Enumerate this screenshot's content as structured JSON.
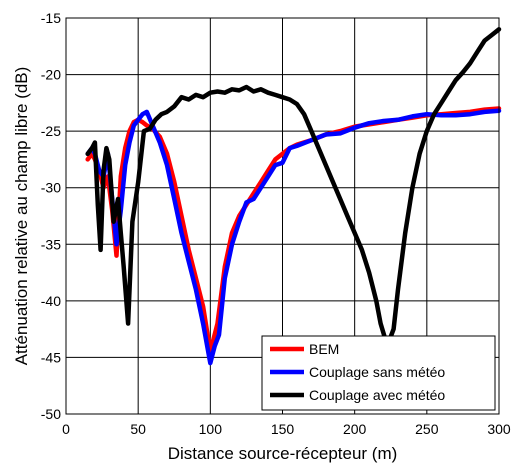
{
  "chart_data": {
    "type": "line",
    "title": "",
    "xlabel": "Distance source-récepteur (m)",
    "ylabel": "Atténuation relative au champ libre (dB)",
    "xlim": [
      0,
      300
    ],
    "ylim": [
      -50,
      -15
    ],
    "xticks": [
      0,
      50,
      100,
      150,
      200,
      250,
      300
    ],
    "yticks": [
      -50,
      -45,
      -40,
      -35,
      -30,
      -25,
      -20,
      -15
    ],
    "xtick_labels": [
      "0",
      "50",
      "100",
      "150",
      "200",
      "250",
      "300"
    ],
    "ytick_labels": [
      "-50",
      "-45",
      "-40",
      "-35",
      "-30",
      "-25",
      "-20",
      "-15"
    ],
    "grid": true,
    "legend_position": "bottom-right",
    "series": [
      {
        "name": "BEM",
        "color": "#ff0000",
        "x": [
          15,
          18,
          20,
          23,
          26,
          29,
          32,
          35,
          38,
          41,
          44,
          47,
          50,
          53,
          56,
          60,
          65,
          70,
          75,
          80,
          85,
          90,
          95,
          100,
          105,
          110,
          115,
          120,
          125,
          130,
          135,
          140,
          145,
          150,
          155,
          160,
          170,
          180,
          190,
          200,
          210,
          220,
          230,
          240,
          250,
          260,
          270,
          280,
          290,
          300
        ],
        "y": [
          -27.5,
          -27,
          -27.5,
          -28.5,
          -30,
          -29,
          -32,
          -36,
          -29,
          -26.5,
          -25,
          -24.2,
          -24,
          -24.2,
          -24.5,
          -24.8,
          -25.5,
          -27,
          -29.5,
          -32.5,
          -35.5,
          -38,
          -40.5,
          -44.5,
          -42,
          -37,
          -34,
          -32.5,
          -31.5,
          -30.5,
          -29.5,
          -28.5,
          -27.5,
          -27,
          -26.5,
          -26.2,
          -25.8,
          -25.3,
          -25,
          -24.6,
          -24.4,
          -24.2,
          -24,
          -23.8,
          -23.6,
          -23.5,
          -23.4,
          -23.3,
          -23.1,
          -23
        ]
      },
      {
        "name": "Couplage sans météo",
        "color": "#0000ff",
        "x": [
          15,
          18,
          20,
          23,
          26,
          29,
          32,
          35,
          38,
          41,
          44,
          47,
          50,
          53,
          56,
          60,
          65,
          70,
          75,
          80,
          85,
          90,
          95,
          100,
          103,
          106,
          110,
          115,
          120,
          125,
          130,
          135,
          140,
          145,
          150,
          155,
          160,
          170,
          180,
          190,
          200,
          210,
          220,
          230,
          240,
          250,
          260,
          270,
          280,
          290,
          300
        ],
        "y": [
          -27,
          -26.5,
          -27,
          -28.5,
          -29,
          -27,
          -31,
          -35,
          -32,
          -28,
          -26,
          -24.5,
          -24,
          -23.5,
          -23.3,
          -24.5,
          -26,
          -28,
          -31,
          -34,
          -36.5,
          -39,
          -42,
          -45.5,
          -44,
          -43,
          -38,
          -35,
          -33,
          -31.3,
          -31,
          -30,
          -29,
          -28,
          -27.8,
          -26.5,
          -26.3,
          -25.8,
          -25.3,
          -25.2,
          -24.7,
          -24.3,
          -24.1,
          -24,
          -23.7,
          -23.5,
          -23.6,
          -23.6,
          -23.5,
          -23.3,
          -23.2
        ]
      },
      {
        "name": "Couplage avec météo",
        "color": "#000000",
        "x": [
          15,
          18,
          20,
          22,
          24,
          26,
          28,
          30,
          33,
          36,
          38,
          40,
          43,
          46,
          50,
          54,
          58,
          62,
          66,
          70,
          75,
          80,
          85,
          90,
          95,
          100,
          105,
          110,
          115,
          120,
          125,
          130,
          135,
          140,
          145,
          150,
          155,
          160,
          165,
          170,
          175,
          180,
          185,
          190,
          195,
          200,
          205,
          210,
          215,
          218,
          221,
          224,
          227,
          230,
          235,
          240,
          245,
          250,
          255,
          260,
          265,
          270,
          275,
          280,
          285,
          290,
          295,
          300
        ],
        "y": [
          -27,
          -26.5,
          -26,
          -31.5,
          -35.5,
          -28.5,
          -26.5,
          -27.5,
          -33,
          -31,
          -34,
          -37,
          -42,
          -33,
          -29.5,
          -25,
          -24.8,
          -24,
          -23.5,
          -23.3,
          -22.8,
          -22,
          -22.2,
          -21.8,
          -22,
          -21.6,
          -21.5,
          -21.6,
          -21.3,
          -21.4,
          -21.1,
          -21.5,
          -21.3,
          -21.6,
          -21.8,
          -22,
          -22.2,
          -22.6,
          -23.5,
          -25,
          -26.5,
          -28,
          -29.5,
          -31,
          -32.5,
          -34,
          -35.5,
          -37.5,
          -40,
          -42,
          -43.3,
          -43.5,
          -42.5,
          -39,
          -34,
          -30,
          -27,
          -25,
          -23.5,
          -22.5,
          -21.5,
          -20.5,
          -19.8,
          -19,
          -18,
          -17,
          -16.5,
          -16
        ]
      }
    ]
  }
}
